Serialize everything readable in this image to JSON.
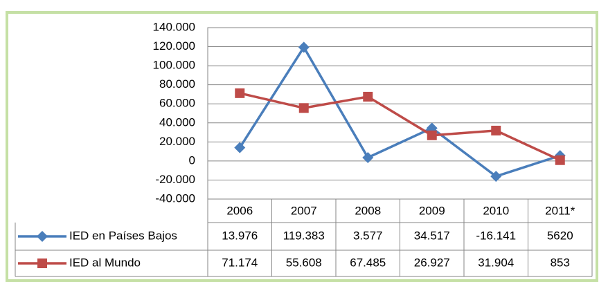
{
  "chart_data": {
    "type": "line",
    "categories": [
      "2006",
      "2007",
      "2008",
      "2009",
      "2010",
      "2011*"
    ],
    "series": [
      {
        "name": "IED en Países Bajos",
        "color": "#4a7ebb",
        "marker": "diamond",
        "values": [
          13976,
          119383,
          3577,
          34517,
          -16141,
          5620
        ],
        "value_labels": [
          "13.976",
          "119.383",
          "3.577",
          "34.517",
          "-16.141",
          "5620"
        ]
      },
      {
        "name": "IED al Mundo",
        "color": "#be4b48",
        "marker": "square",
        "values": [
          71174,
          55608,
          67485,
          26927,
          31904,
          853
        ],
        "value_labels": [
          "71.174",
          "55.608",
          "67.485",
          "26.927",
          "31.904",
          "853"
        ]
      }
    ],
    "ylim": [
      -40000,
      140000
    ],
    "yticks": [
      {
        "value": -40000,
        "label": "-40.000"
      },
      {
        "value": -20000,
        "label": "-20.000"
      },
      0,
      {
        "value": 20000,
        "label": "20.000"
      },
      {
        "value": 40000,
        "label": "40.000"
      },
      {
        "value": 60000,
        "label": "60.000"
      },
      {
        "value": 80000,
        "label": "80.000"
      },
      {
        "value": 100000,
        "label": "100.000"
      },
      {
        "value": 120000,
        "label": "120.000"
      },
      {
        "value": 140000,
        "label": "140.000"
      }
    ],
    "grid": true
  }
}
